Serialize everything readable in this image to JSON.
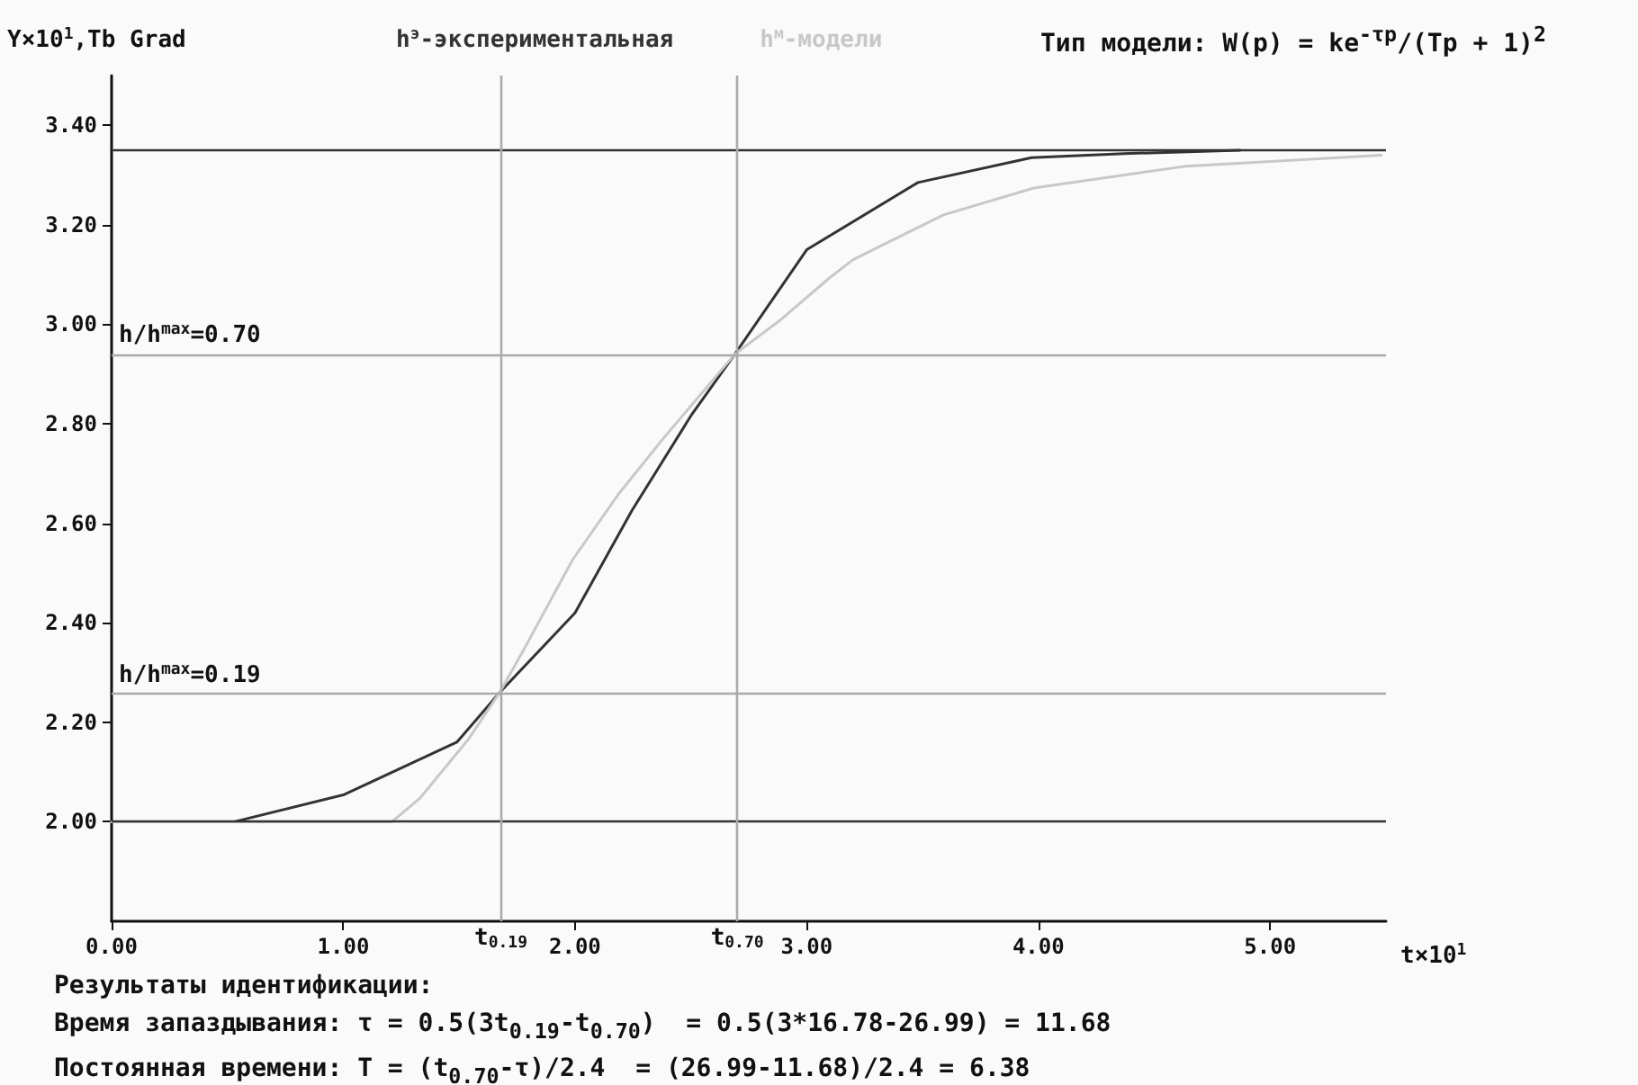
{
  "chart_data": {
    "type": "line",
    "title": "Тип модели: W(p) = ke$^{-τp}$/(Tp + 1)$^{2}$",
    "xlabel": "t×10$^{1}$",
    "ylabel": "Y×10$^{1}$,Tb Grad",
    "xlim": [
      0,
      5.5
    ],
    "xticks": [
      {
        "value": 0,
        "label": "0.00"
      },
      {
        "value": 1,
        "label": "1.00"
      },
      {
        "value": 2,
        "label": "2.00"
      },
      {
        "value": 3,
        "label": "3.00"
      },
      {
        "value": 4,
        "label": "4.00"
      },
      {
        "value": 5,
        "label": "5.00"
      }
    ],
    "ylim": [
      1.8,
      3.5
    ],
    "yticks": [
      {
        "value": 2,
        "label": "2.00"
      },
      {
        "value": 2.2,
        "label": "2.20"
      },
      {
        "value": 2.4,
        "label": "2.40"
      },
      {
        "value": 2.6,
        "label": "2.60"
      },
      {
        "value": 2.8,
        "label": "2.80"
      },
      {
        "value": 3,
        "label": "3.00"
      },
      {
        "value": 3.2,
        "label": "3.20"
      },
      {
        "value": 3.4,
        "label": "3.40"
      }
    ],
    "series": [
      {
        "name": "h$^{э}$-экспериментальная",
        "color": "#333333",
        "x": [
          0.53,
          1.0,
          1.49,
          1.675,
          2.0,
          2.245,
          2.5,
          2.69,
          3.0,
          3.48,
          3.97,
          4.37,
          4.87
        ],
        "values": [
          2.0,
          2.054,
          2.16,
          2.26,
          2.42,
          2.625,
          2.816,
          2.94,
          3.15,
          3.285,
          3.335,
          3.343,
          3.35
        ]
      },
      {
        "name": "h$^{м}$-модели",
        "color": "#c8c8c8",
        "x": [
          0,
          1.21,
          1.33,
          1.54,
          1.675,
          1.78,
          1.99,
          2.19,
          2.38,
          2.69,
          2.89,
          3.1,
          3.2,
          3.59,
          3.98,
          4.64,
          5.48
        ],
        "values": [
          2.0,
          2.0,
          2.047,
          2.166,
          2.26,
          2.347,
          2.527,
          2.66,
          2.77,
          2.94,
          3.01,
          3.094,
          3.13,
          3.22,
          3.274,
          3.318,
          3.34
        ]
      }
    ],
    "ref_lines": [
      {
        "axis": "y",
        "value": 3.35,
        "label": null,
        "color": "#333333"
      },
      {
        "axis": "y",
        "value": 2.0,
        "label": null,
        "color": "#333333"
      },
      {
        "axis": "y",
        "value": 2.256,
        "label": null,
        "color": "#aaaaaa"
      },
      {
        "axis": "y",
        "value": 2.94,
        "label": null,
        "color": "#aaaaaa"
      },
      {
        "axis": "x",
        "value": 1.678,
        "label": "t$_{0.19}$",
        "color": "#aaaaaa"
      },
      {
        "axis": "x",
        "value": 2.699,
        "label": "t$_{0.70}$",
        "color": "#aaaaaa"
      }
    ],
    "annotations": [
      {
        "text": "h/h$^{max}$=0.19",
        "x": 0,
        "y": 2.256
      },
      {
        "text": "h/h$^{max}$=0.70",
        "x": 0,
        "y": 2.94
      },
      "Результаты идентификации:",
      "Время запаздывания: τ = 0.5(3t$_{0.19}$-t$_{0.70}$)  = 0.5(3*16.78-26.99) = 11.68",
      "Постоянная времени: T = (t$_{0.70}$-τ)/2.4  = (26.99-11.68)/2.4 = 6.38"
    ],
    "legend": "top",
    "grid": false,
    "marker": "none",
    "line_style": "solid"
  }
}
